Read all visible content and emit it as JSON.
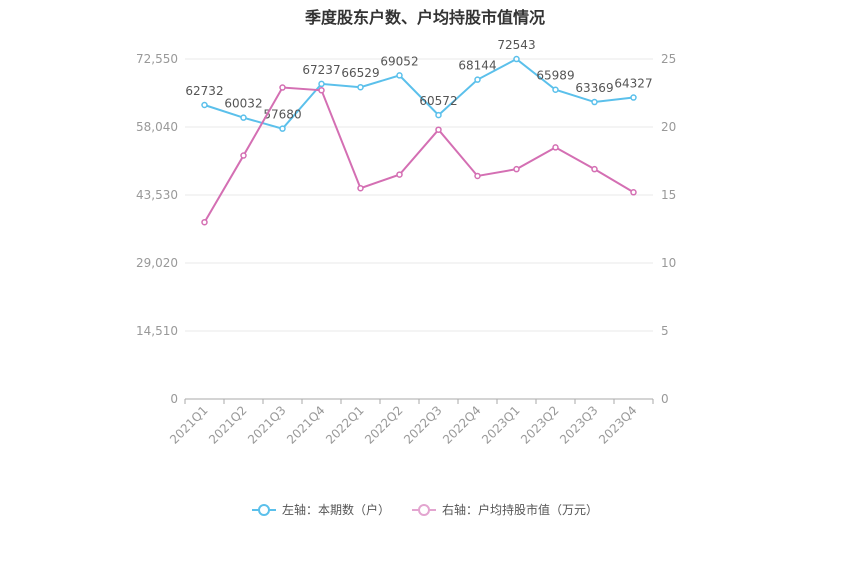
{
  "title": "季度股东户数、户均持股市值情况",
  "chart_data": {
    "type": "line",
    "categories": [
      "2021Q1",
      "2021Q2",
      "2021Q3",
      "2021Q4",
      "2022Q1",
      "2022Q2",
      "2022Q3",
      "2022Q4",
      "2023Q1",
      "2023Q2",
      "2023Q3",
      "2023Q4"
    ],
    "y_left": {
      "ticks": [
        "0",
        "14,510",
        "29,020",
        "43,530",
        "58,040",
        "72,550"
      ],
      "range": [
        0,
        72550
      ]
    },
    "y_right": {
      "ticks": [
        "0",
        "5",
        "10",
        "15",
        "20",
        "25"
      ],
      "range": [
        0,
        25
      ]
    },
    "series": [
      {
        "name": "左轴：本期数（户）",
        "axis": "left",
        "color": "#5bc0eb",
        "values": [
          62732,
          60032,
          57680,
          67237,
          66529,
          69052,
          60572,
          68144,
          72543,
          65989,
          63369,
          64327
        ],
        "labels": [
          "62732",
          "60032",
          "57680",
          "67237",
          "66529",
          "69052",
          "60572",
          "68144",
          "72543",
          "65989",
          "63369",
          "64327"
        ]
      },
      {
        "name": "右轴：户均持股市值（万元）",
        "axis": "right",
        "color": "#d46fb3",
        "values": [
          13.0,
          17.9,
          22.9,
          22.7,
          15.5,
          16.5,
          19.8,
          16.4,
          16.9,
          18.5,
          16.9,
          15.2
        ]
      }
    ],
    "grid": true,
    "legend_position": "bottom"
  }
}
